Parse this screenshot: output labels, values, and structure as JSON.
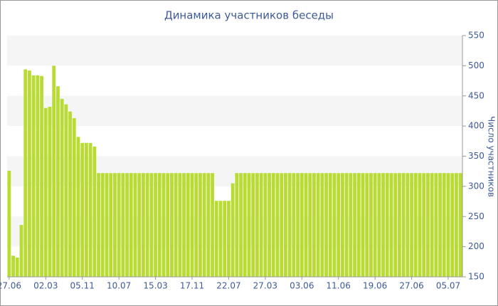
{
  "chart_data": {
    "type": "bar",
    "title": "Динамика участников беседы",
    "y_label": "Число участников",
    "categories": [
      "27.06",
      null,
      null,
      null,
      null,
      null,
      null,
      null,
      null,
      "02.03",
      null,
      null,
      null,
      null,
      null,
      null,
      null,
      null,
      "05.11",
      null,
      null,
      null,
      null,
      null,
      null,
      null,
      null,
      "10.07",
      null,
      null,
      null,
      null,
      null,
      null,
      null,
      null,
      "15.03",
      null,
      null,
      null,
      null,
      null,
      null,
      null,
      null,
      "17.11",
      null,
      null,
      null,
      null,
      null,
      null,
      null,
      null,
      "22.07",
      null,
      null,
      null,
      null,
      null,
      null,
      null,
      null,
      "27.03",
      null,
      null,
      null,
      null,
      null,
      null,
      null,
      null,
      "03.06",
      null,
      null,
      null,
      null,
      null,
      null,
      null,
      null,
      "11.06",
      null,
      null,
      null,
      null,
      null,
      null,
      null,
      null,
      "19.06",
      null,
      null,
      null,
      null,
      null,
      null,
      null,
      null,
      "27.06",
      null,
      null,
      null,
      null,
      null,
      null,
      null,
      null,
      "05.07",
      null,
      null,
      null
    ],
    "values": [
      326,
      185,
      182,
      236,
      494,
      492,
      484,
      484,
      483,
      430,
      432,
      500,
      466,
      445,
      436,
      424,
      413,
      382,
      372,
      372,
      372,
      366,
      322,
      322,
      322,
      322,
      322,
      322,
      322,
      322,
      322,
      322,
      322,
      322,
      322,
      322,
      322,
      322,
      322,
      322,
      322,
      322,
      322,
      322,
      322,
      322,
      322,
      322,
      322,
      322,
      322,
      276,
      276,
      276,
      276,
      305,
      322,
      322,
      322,
      322,
      322,
      322,
      322,
      322,
      322,
      322,
      322,
      322,
      322,
      322,
      322,
      322,
      322,
      322,
      322,
      322,
      322,
      322,
      322,
      322,
      322,
      322,
      322,
      322,
      322,
      322,
      322,
      322,
      322,
      322,
      322,
      322,
      322,
      322,
      322,
      322,
      322,
      322,
      322,
      322,
      322,
      322,
      322,
      322,
      322,
      322,
      322,
      322,
      322,
      322,
      322,
      322
    ],
    "color": "#b8dc34",
    "ylim": [
      150,
      550
    ],
    "yticks": [
      150,
      200,
      250,
      300,
      350,
      400,
      450,
      500,
      550
    ],
    "grid": "bands",
    "y_axis_side": "right"
  }
}
